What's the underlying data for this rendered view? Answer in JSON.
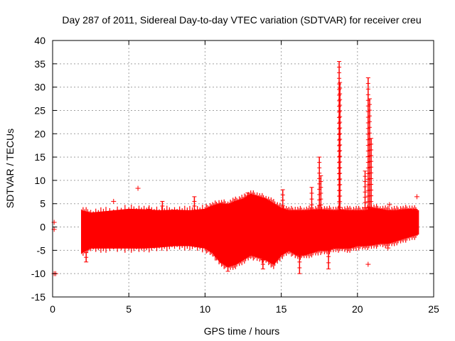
{
  "chart_data": {
    "type": "scatter",
    "title": "Day 287 of 2011, Sidereal Day-to-day VTEC variation (SDTVAR) for receiver creu",
    "xlabel": "GPS time / hours",
    "ylabel": "SDTVAR / TECUs",
    "xlim": [
      0,
      25
    ],
    "ylim": [
      -15,
      40
    ],
    "xticks": [
      "0",
      "5",
      "10",
      "15",
      "20",
      "25"
    ],
    "yticks": [
      "-15",
      "-10",
      "-5",
      "0",
      "5",
      "10",
      "15",
      "20",
      "25",
      "30",
      "35",
      "40"
    ],
    "grid": true,
    "marker": "+",
    "color": "#ff0000",
    "band": {
      "x": [
        1.9,
        2.5,
        3.5,
        5,
        6,
        7,
        8,
        9,
        10,
        10.5,
        11,
        11.5,
        12,
        12.5,
        13,
        13.5,
        14,
        14.5,
        15,
        15.5,
        16,
        16.5,
        17,
        17.5,
        18,
        18.5,
        19,
        19.5,
        20,
        20.5,
        21,
        21.5,
        22,
        22.5,
        23,
        23.5,
        24
      ],
      "upper": [
        3.5,
        3.0,
        3.3,
        3.8,
        3.7,
        3.5,
        3.6,
        3.5,
        3.8,
        4.5,
        5.0,
        4.8,
        5.5,
        6.0,
        7.0,
        6.5,
        6.0,
        5.0,
        4.0,
        3.5,
        3.5,
        3.5,
        3.6,
        3.7,
        3.6,
        3.5,
        3.6,
        3.5,
        3.5,
        3.5,
        4.0,
        3.8,
        3.5,
        3.5,
        3.7,
        3.8,
        3.5
      ],
      "lower": [
        -5.5,
        -4.5,
        -4.5,
        -4.5,
        -4.5,
        -4.3,
        -4.0,
        -4.0,
        -4.5,
        -5.5,
        -7.5,
        -8.5,
        -8.0,
        -7.0,
        -6.0,
        -6.5,
        -7.0,
        -8.0,
        -6.0,
        -5.0,
        -6.0,
        -6.0,
        -5.5,
        -5.0,
        -5.0,
        -4.5,
        -4.5,
        -4.5,
        -4.0,
        -4.0,
        -3.8,
        -3.5,
        -3.5,
        -3.0,
        -2.5,
        -2.0,
        -1.5
      ]
    },
    "spikes": [
      {
        "x": 18.8,
        "top": 35.5,
        "bottom": 3
      },
      {
        "x": 18.85,
        "top": 31,
        "bottom": 3
      },
      {
        "x": 20.7,
        "top": 32,
        "bottom": 3
      },
      {
        "x": 20.8,
        "top": 27.5,
        "bottom": 3
      },
      {
        "x": 20.9,
        "top": 19,
        "bottom": 3
      },
      {
        "x": 20.5,
        "top": 12,
        "bottom": 3
      },
      {
        "x": 17.5,
        "top": 15,
        "bottom": 3.5
      },
      {
        "x": 17.6,
        "top": 11,
        "bottom": 3.5
      },
      {
        "x": 17.0,
        "top": 8.5,
        "bottom": 3.5
      },
      {
        "x": 15.1,
        "top": 8,
        "bottom": 3.5
      },
      {
        "x": 9.3,
        "top": 6.5,
        "bottom": 3.5
      },
      {
        "x": 7.2,
        "top": 5.5,
        "bottom": 3.5
      },
      {
        "x": 23.8,
        "top": 3.8,
        "bottom": -1.5
      },
      {
        "x": 12.8,
        "top": 7.3,
        "bottom": 4
      },
      {
        "x": 16.2,
        "top": -5,
        "bottom": -10
      },
      {
        "x": 11.5,
        "top": -6,
        "bottom": -9.5
      },
      {
        "x": 13.8,
        "top": -6,
        "bottom": -9
      },
      {
        "x": 18.1,
        "top": -5,
        "bottom": -9
      },
      {
        "x": 2.2,
        "top": -4.5,
        "bottom": -7.5
      }
    ],
    "points": [
      [
        0.1,
        1
      ],
      [
        0.1,
        -0.5
      ],
      [
        0.1,
        -10
      ],
      [
        0.2,
        -10
      ],
      [
        5.6,
        8.3
      ],
      [
        4.0,
        5.5
      ],
      [
        6.3,
        3.8
      ],
      [
        20.7,
        -8
      ],
      [
        22.1,
        4.8
      ],
      [
        23.9,
        6.5
      ],
      [
        22.0,
        -4.5
      ]
    ]
  }
}
